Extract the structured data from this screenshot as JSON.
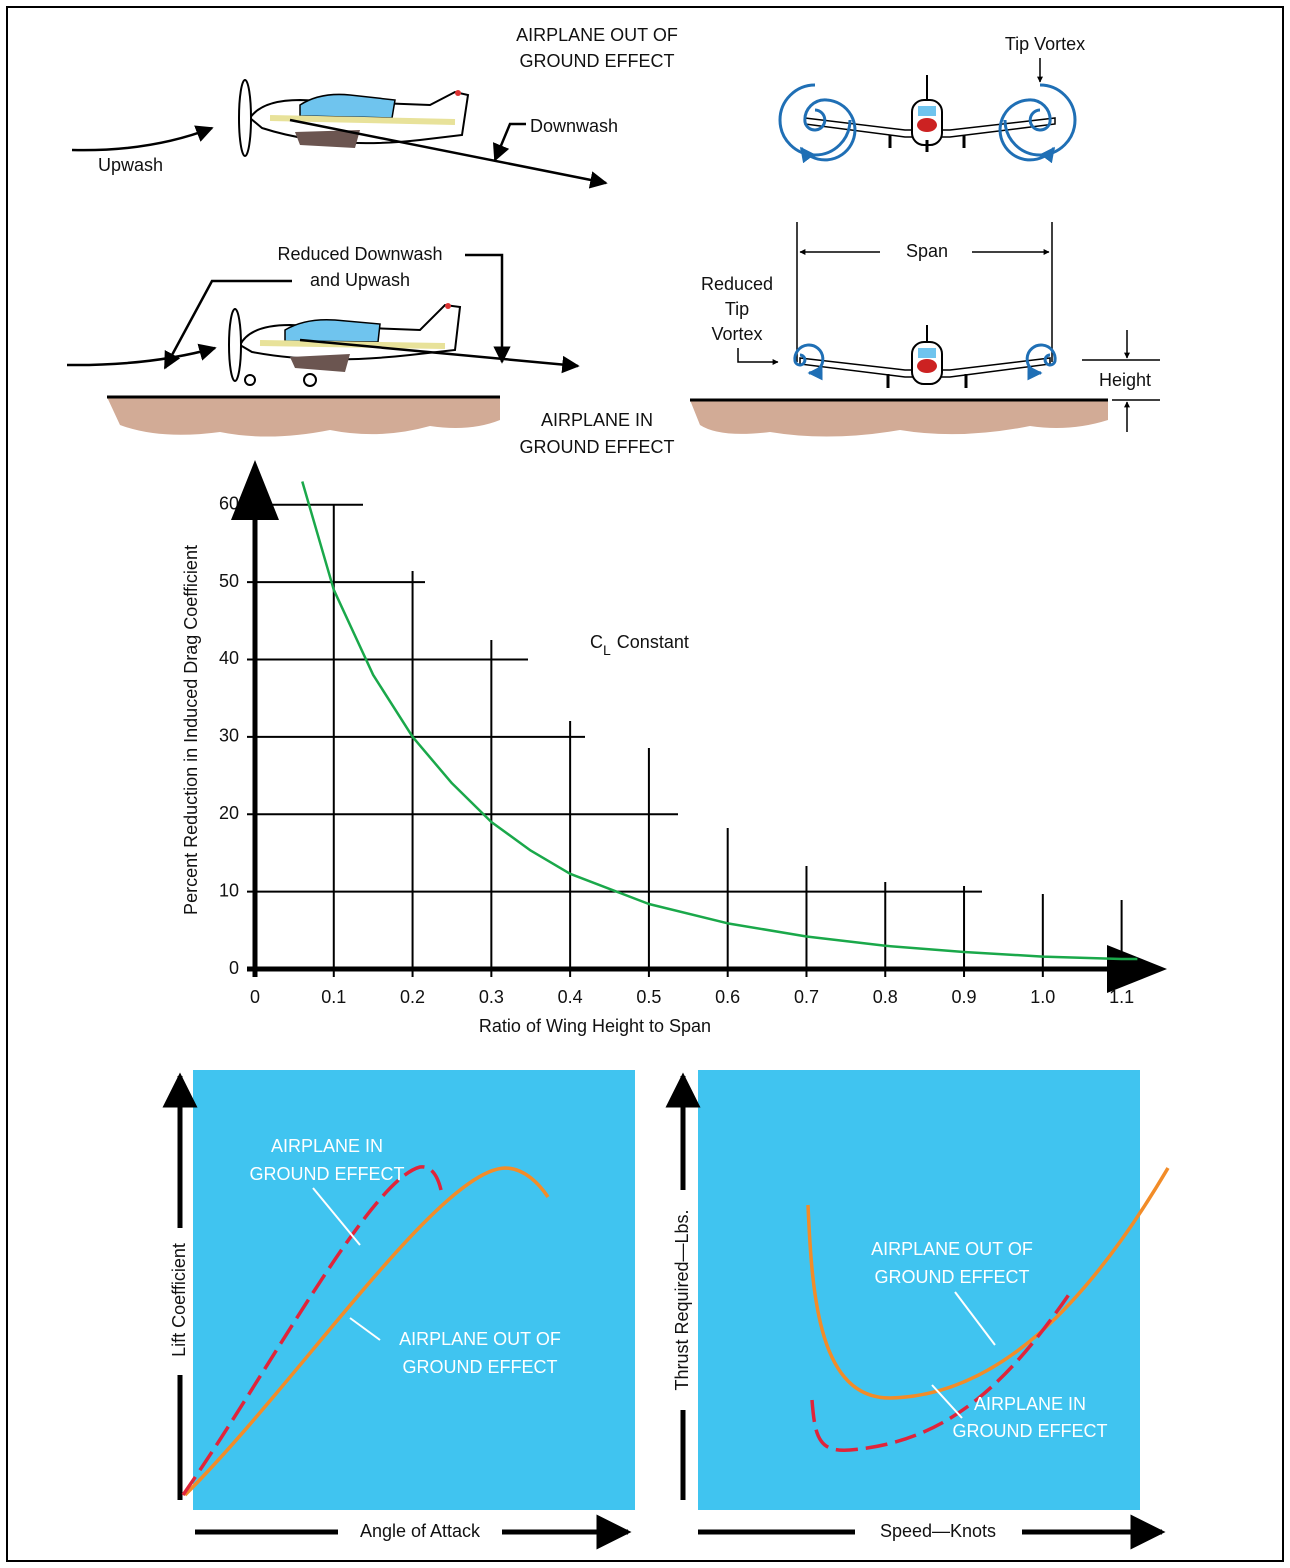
{
  "illustrations": {
    "title_out": [
      "AIRPLANE OUT OF",
      "GROUND EFFECT"
    ],
    "upwash_top": "Upwash",
    "downwash": "Downwash",
    "tip_vortex": "Tip Vortex",
    "reduced_wash": [
      "Reduced Downwash",
      "and Upwash"
    ],
    "span": "Span",
    "reduced_tip": [
      "Reduced",
      "Tip",
      "Vortex"
    ],
    "height": "Height",
    "title_in": [
      "AIRPLANE IN",
      "GROUND EFFECT"
    ]
  },
  "chart_data": {
    "type": "line",
    "x_label": "Ratio of Wing Height to Span",
    "y_label": "Percent Reduction in Induced Drag Coefficient",
    "annotation": [
      "C",
      "L",
      "Constant"
    ],
    "x": [
      0.06,
      0.1,
      0.15,
      0.2,
      0.25,
      0.3,
      0.35,
      0.4,
      0.5,
      0.6,
      0.7,
      0.8,
      0.9,
      1.0,
      1.1,
      1.12
    ],
    "series": [
      {
        "color": "#1aa84a",
        "values": [
          63,
          49,
          38,
          30,
          24,
          19,
          15.3,
          12.3,
          8.4,
          5.9,
          4.2,
          3,
          2.2,
          1.6,
          1.3,
          1.3
        ]
      }
    ],
    "xlim": [
      0,
      1.15
    ],
    "ylim": [
      0,
      65
    ],
    "xticks": [
      0,
      0.1,
      0.2,
      0.3,
      0.4,
      0.5,
      0.6,
      0.7,
      0.8,
      0.9,
      {
        "value": 1,
        "label": "1.0"
      },
      1.1
    ],
    "yticks": [
      0,
      10,
      20,
      30,
      40,
      50,
      60
    ],
    "grid": true
  },
  "lift_panel": {
    "y_label": "Lift Coefficient",
    "x_label": "Angle of Attack",
    "in_label": [
      "AIRPLANE IN",
      "GROUND EFFECT"
    ],
    "out_label": [
      "AIRPLANE OUT OF",
      "GROUND EFFECT"
    ]
  },
  "thrust_panel": {
    "y_label": "Thrust Required—Lbs.",
    "x_label": "Speed—Knots",
    "out_label": [
      "AIRPLANE OUT OF",
      "GROUND EFFECT"
    ],
    "in_label": [
      "AIRPLANE IN",
      "GROUND EFFECT"
    ]
  }
}
